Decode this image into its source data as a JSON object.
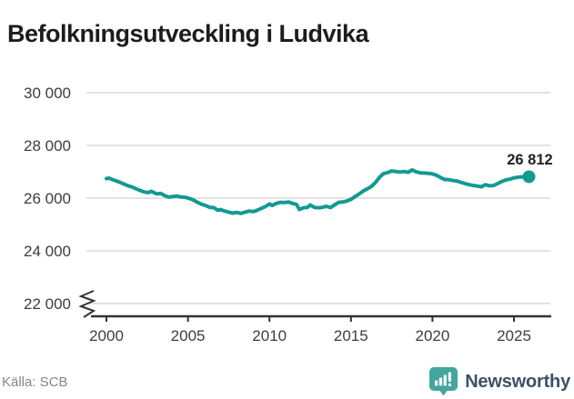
{
  "title": "Befolkningsutveckling i Ludvika",
  "footer": {
    "source": "Källa: SCB",
    "brand": "Newsworthy"
  },
  "colors": {
    "line": "#129a91",
    "grid": "#e3e3e3",
    "axis": "#333333",
    "title_text": "#1c1c1c",
    "tick_label": "#3d3d3d",
    "end_label": "#222222",
    "source_text": "#85858D",
    "brand_text": "#3B5266",
    "brand_icon": "#44A5A0"
  },
  "chart_data": {
    "type": "line",
    "title": "Befolkningsutveckling i Ludvika",
    "xlabel": "",
    "ylabel": "",
    "grid": "horizontal",
    "axis_break_at_bottom": true,
    "legend": "none",
    "xlim": [
      1999.4,
      2026.4
    ],
    "ylim": [
      21800,
      30400
    ],
    "x_ticks": [
      2000,
      2005,
      2010,
      2015,
      2020,
      2025
    ],
    "x_tick_labels": [
      "2000",
      "2005",
      "2010",
      "2015",
      "2020",
      "2025"
    ],
    "y_ticks": [
      22000,
      24000,
      26000,
      28000,
      30000
    ],
    "y_tick_labels": [
      "22 000",
      "24 000",
      "26 000",
      "28 000",
      "30 000"
    ],
    "end_label": "26 812",
    "end_point": [
      2025.92,
      26812
    ],
    "series": [
      {
        "name": "Befolkning",
        "points": [
          [
            2000.0,
            26740
          ],
          [
            2000.17,
            26760
          ],
          [
            2000.33,
            26710
          ],
          [
            2000.58,
            26660
          ],
          [
            2000.83,
            26600
          ],
          [
            2001.08,
            26530
          ],
          [
            2001.33,
            26470
          ],
          [
            2001.58,
            26420
          ],
          [
            2001.83,
            26350
          ],
          [
            2002.08,
            26290
          ],
          [
            2002.33,
            26230
          ],
          [
            2002.58,
            26210
          ],
          [
            2002.75,
            26260
          ],
          [
            2002.92,
            26210
          ],
          [
            2003.08,
            26160
          ],
          [
            2003.33,
            26180
          ],
          [
            2003.58,
            26090
          ],
          [
            2003.83,
            26040
          ],
          [
            2004.08,
            26060
          ],
          [
            2004.33,
            26080
          ],
          [
            2004.58,
            26040
          ],
          [
            2004.83,
            26030
          ],
          [
            2005.08,
            25990
          ],
          [
            2005.33,
            25930
          ],
          [
            2005.58,
            25840
          ],
          [
            2005.83,
            25770
          ],
          [
            2006.08,
            25720
          ],
          [
            2006.33,
            25650
          ],
          [
            2006.58,
            25640
          ],
          [
            2006.83,
            25540
          ],
          [
            2007.0,
            25570
          ],
          [
            2007.25,
            25510
          ],
          [
            2007.5,
            25470
          ],
          [
            2007.75,
            25430
          ],
          [
            2008.0,
            25460
          ],
          [
            2008.25,
            25420
          ],
          [
            2008.5,
            25470
          ],
          [
            2008.75,
            25510
          ],
          [
            2009.0,
            25490
          ],
          [
            2009.25,
            25540
          ],
          [
            2009.5,
            25610
          ],
          [
            2009.75,
            25680
          ],
          [
            2010.0,
            25780
          ],
          [
            2010.17,
            25720
          ],
          [
            2010.42,
            25800
          ],
          [
            2010.67,
            25840
          ],
          [
            2010.92,
            25830
          ],
          [
            2011.17,
            25850
          ],
          [
            2011.42,
            25800
          ],
          [
            2011.67,
            25760
          ],
          [
            2011.83,
            25570
          ],
          [
            2012.08,
            25630
          ],
          [
            2012.33,
            25650
          ],
          [
            2012.5,
            25740
          ],
          [
            2012.75,
            25650
          ],
          [
            2013.0,
            25630
          ],
          [
            2013.25,
            25650
          ],
          [
            2013.5,
            25690
          ],
          [
            2013.75,
            25640
          ],
          [
            2014.0,
            25750
          ],
          [
            2014.25,
            25840
          ],
          [
            2014.5,
            25850
          ],
          [
            2014.75,
            25890
          ],
          [
            2015.0,
            25950
          ],
          [
            2015.25,
            26060
          ],
          [
            2015.5,
            26160
          ],
          [
            2015.75,
            26270
          ],
          [
            2016.0,
            26350
          ],
          [
            2016.25,
            26440
          ],
          [
            2016.5,
            26590
          ],
          [
            2016.75,
            26790
          ],
          [
            2017.0,
            26930
          ],
          [
            2017.25,
            26970
          ],
          [
            2017.5,
            27030
          ],
          [
            2017.75,
            27010
          ],
          [
            2018.0,
            26990
          ],
          [
            2018.25,
            27010
          ],
          [
            2018.5,
            26980
          ],
          [
            2018.75,
            27070
          ],
          [
            2019.0,
            27000
          ],
          [
            2019.25,
            26960
          ],
          [
            2019.5,
            26950
          ],
          [
            2019.75,
            26940
          ],
          [
            2020.0,
            26920
          ],
          [
            2020.25,
            26870
          ],
          [
            2020.5,
            26780
          ],
          [
            2020.75,
            26710
          ],
          [
            2021.0,
            26700
          ],
          [
            2021.25,
            26670
          ],
          [
            2021.5,
            26650
          ],
          [
            2021.75,
            26600
          ],
          [
            2022.0,
            26550
          ],
          [
            2022.25,
            26510
          ],
          [
            2022.5,
            26480
          ],
          [
            2022.75,
            26460
          ],
          [
            2023.0,
            26430
          ],
          [
            2023.25,
            26510
          ],
          [
            2023.5,
            26470
          ],
          [
            2023.75,
            26480
          ],
          [
            2024.0,
            26550
          ],
          [
            2024.25,
            26630
          ],
          [
            2024.5,
            26690
          ],
          [
            2024.75,
            26720
          ],
          [
            2025.0,
            26770
          ],
          [
            2025.33,
            26800
          ],
          [
            2025.92,
            26812
          ]
        ]
      }
    ]
  }
}
